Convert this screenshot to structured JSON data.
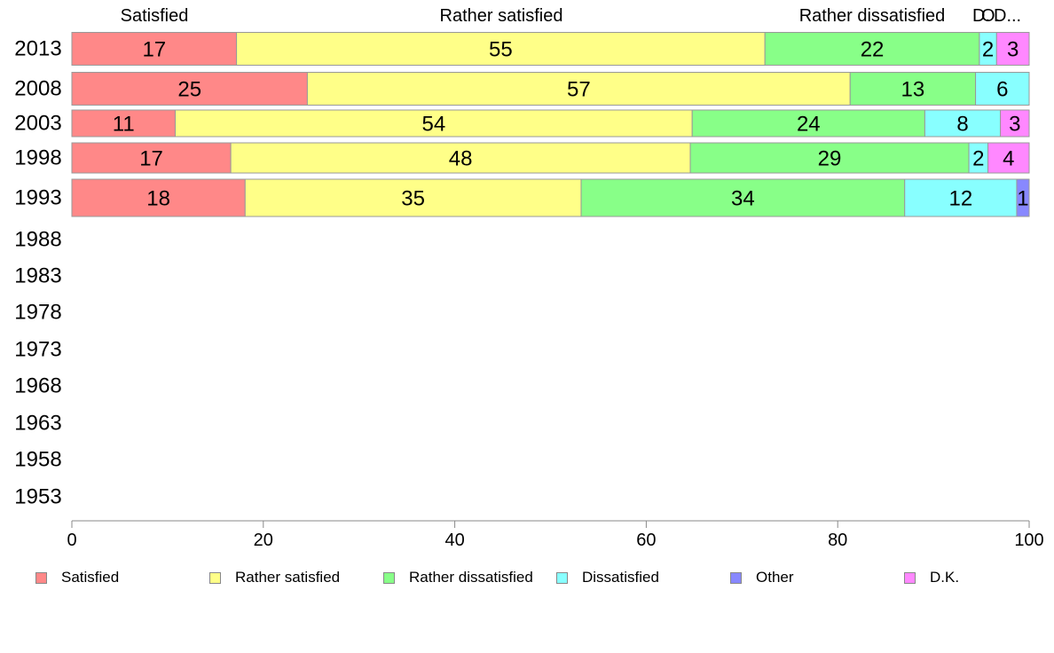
{
  "chart_data": {
    "type": "bar",
    "orientation": "horizontal",
    "stacked": true,
    "categories": [
      "2013",
      "2008",
      "2003",
      "1998",
      "1993",
      "1988",
      "1983",
      "1978",
      "1973",
      "1968",
      "1963",
      "1958",
      "1953"
    ],
    "series": [
      {
        "name": "Satisfied",
        "color": "#ff8888",
        "values": [
          17.2,
          24.6,
          10.8,
          16.6,
          18.1,
          null,
          null,
          null,
          null,
          null,
          null,
          null,
          null
        ],
        "labels": [
          "17",
          "25",
          "11",
          "17",
          "18",
          "",
          "",
          "",
          "",
          "",
          "",
          "",
          ""
        ]
      },
      {
        "name": "Rather satisfied",
        "color": "#ffff88",
        "values": [
          55.2,
          56.7,
          54.0,
          48.0,
          35.1,
          null,
          null,
          null,
          null,
          null,
          null,
          null,
          null
        ],
        "labels": [
          "55",
          "57",
          "54",
          "48",
          "35",
          "",
          "",
          "",
          "",
          "",
          "",
          "",
          ""
        ]
      },
      {
        "name": "Rather dissatisfied",
        "color": "#88ff88",
        "values": [
          22.4,
          13.1,
          24.3,
          29.1,
          33.8,
          null,
          null,
          null,
          null,
          null,
          null,
          null,
          null
        ],
        "labels": [
          "22",
          "13",
          "24",
          "29",
          "34",
          "",
          "",
          "",
          "",
          "",
          "",
          "",
          ""
        ]
      },
      {
        "name": "Dissatisfied",
        "color": "#88ffff",
        "values": [
          1.8,
          5.6,
          7.9,
          2.0,
          11.7,
          null,
          null,
          null,
          null,
          null,
          null,
          null,
          null
        ],
        "labels": [
          "2",
          "6",
          "8",
          "2",
          "12",
          "",
          "",
          "",
          "",
          "",
          "",
          "",
          ""
        ]
      },
      {
        "name": "Other",
        "color": "#8888ff",
        "values": [
          0,
          0,
          0,
          0,
          1.3,
          null,
          null,
          null,
          null,
          null,
          null,
          null,
          null
        ],
        "labels": [
          "",
          "",
          "",
          "",
          "1",
          "",
          "",
          "",
          "",
          "",
          "",
          "",
          ""
        ]
      },
      {
        "name": "D.K.",
        "color": "#ff88ff",
        "values": [
          3.4,
          0,
          3.0,
          4.3,
          0,
          null,
          null,
          null,
          null,
          null,
          null,
          null,
          null
        ],
        "labels": [
          "3",
          "",
          "3",
          "4",
          "",
          "",
          "",
          "",
          "",
          "",
          "",
          "",
          ""
        ]
      }
    ],
    "top_labels": [
      "Satisfied",
      "Rather satisfied",
      "Rather dissatisfied",
      "D.",
      "O.",
      "D..."
    ],
    "x_ticks": [
      "0",
      "20",
      "40",
      "60",
      "80",
      "100"
    ],
    "xlim": [
      0,
      100
    ],
    "grid": false,
    "legend_position": "bottom"
  }
}
